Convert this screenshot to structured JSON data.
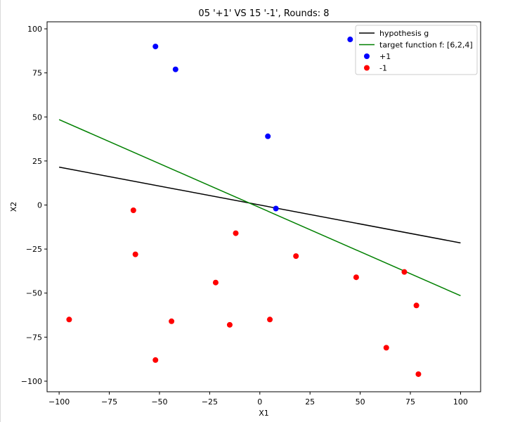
{
  "chart_data": {
    "type": "scatter",
    "title": "05 '+1' VS 15 '-1', Rounds: 8",
    "xlabel": "X1",
    "ylabel": "X2",
    "xlim": [
      -106,
      110
    ],
    "ylim": [
      -106,
      104
    ],
    "xticks": [
      -100,
      -75,
      -50,
      -25,
      0,
      25,
      50,
      75,
      100
    ],
    "yticks": [
      -100,
      -75,
      -50,
      -25,
      0,
      25,
      50,
      75,
      100
    ],
    "xtick_labels": [
      "−100",
      "−75",
      "−50",
      "−25",
      "0",
      "25",
      "50",
      "75",
      "100"
    ],
    "ytick_labels": [
      "−100",
      "−75",
      "−50",
      "−25",
      "0",
      "25",
      "50",
      "75",
      "100"
    ],
    "grid": false,
    "legend_position": "top-right",
    "lines": [
      {
        "name": "hypothesis g",
        "color": "#000000",
        "x": [
          -100,
          100
        ],
        "y": [
          21.5,
          -21.5
        ]
      },
      {
        "name": "target function f: [6,2,4]",
        "color": "#008000",
        "x": [
          -100,
          100
        ],
        "y": [
          48.5,
          -51.5
        ]
      }
    ],
    "scatter": [
      {
        "name": "+1",
        "color": "#0000ff",
        "points": [
          [
            -52,
            90
          ],
          [
            -42,
            77
          ],
          [
            45,
            94
          ],
          [
            4,
            39
          ],
          [
            8,
            -2
          ]
        ]
      },
      {
        "name": "-1",
        "color": "#ff0000",
        "points": [
          [
            -63,
            -3
          ],
          [
            -62,
            -28
          ],
          [
            -12,
            -16
          ],
          [
            18,
            -29
          ],
          [
            -22,
            -44
          ],
          [
            48,
            -41
          ],
          [
            72,
            -38
          ],
          [
            78,
            -57
          ],
          [
            -95,
            -65
          ],
          [
            -44,
            -66
          ],
          [
            -15,
            -68
          ],
          [
            5,
            -65
          ],
          [
            63,
            -81
          ],
          [
            -52,
            -88
          ],
          [
            79,
            -96
          ]
        ]
      }
    ]
  }
}
